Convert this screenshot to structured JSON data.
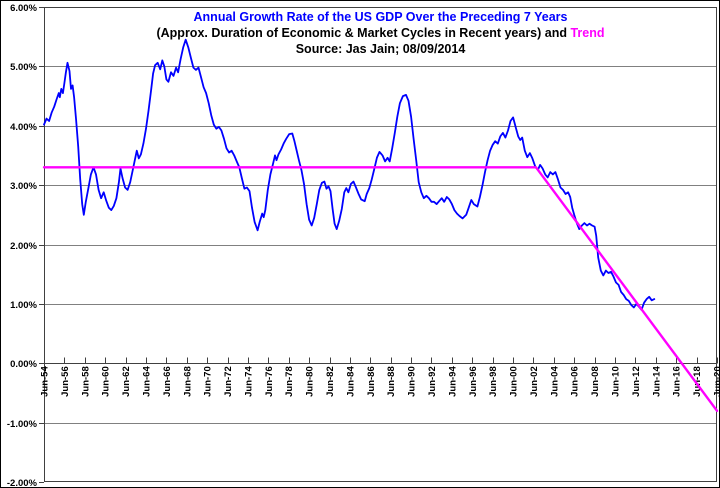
{
  "window": {
    "background": "#FFFFFF",
    "border_color": "#000000"
  },
  "chart_data": {
    "type": "line",
    "title": "Annual Growth Rate of the US GDP Over the Preceding 7 Years",
    "subtitle_prefix": "(Approx. Duration of Economic & Market Cycles in Recent years) and ",
    "subtitle_highlight": "Trend",
    "source_line": "Source: Jas Jain; 08/09/2014",
    "colors": {
      "title": "#0000FF",
      "subtitle": "#000000",
      "gdp_line": "#0000FF",
      "trend_line": "#FF00FF",
      "grid": "#808080",
      "axis": "#404040",
      "labels": "#000000"
    },
    "grid": true,
    "legend": "none",
    "ylim": [
      -2,
      6
    ],
    "ytick_step": 1,
    "ytick_labels": [
      "6.00%",
      "5.00%",
      "4.00%",
      "3.00%",
      "2.00%",
      "1.00%",
      "0.00%",
      "-1.00%",
      "-2.00%"
    ],
    "x_start_year": 1954.45,
    "x_end_year": 2020.45,
    "xtick_step_years": 2,
    "xtick_labels": [
      "Jun-54",
      "Jun-56",
      "Jun-58",
      "Jun-60",
      "Jun-62",
      "Jun-64",
      "Jun-66",
      "Jun-68",
      "Jun-70",
      "Jun-72",
      "Jun-74",
      "Jun-76",
      "Jun-78",
      "Jun-80",
      "Jun-82",
      "Jun-84",
      "Jun-86",
      "Jun-88",
      "Jun-90",
      "Jun-92",
      "Jun-94",
      "Jun-96",
      "Jun-98",
      "Jun-00",
      "Jun-02",
      "Jun-04",
      "Jun-06",
      "Jun-08",
      "Jun-10",
      "Jun-12",
      "Jun-14",
      "Jun-16",
      "Jun-18",
      "Jun-20"
    ],
    "series": [
      {
        "name": "Annual growth rate of US GDP over preceding 7 years",
        "color": "#0000FF",
        "points": [
          [
            1954.45,
            4.02
          ],
          [
            1954.7,
            4.12
          ],
          [
            1954.95,
            4.08
          ],
          [
            1955.2,
            4.22
          ],
          [
            1955.45,
            4.32
          ],
          [
            1955.7,
            4.45
          ],
          [
            1955.9,
            4.55
          ],
          [
            1956.0,
            4.48
          ],
          [
            1956.15,
            4.62
          ],
          [
            1956.3,
            4.55
          ],
          [
            1956.45,
            4.72
          ],
          [
            1956.6,
            4.9
          ],
          [
            1956.75,
            5.06
          ],
          [
            1956.95,
            4.92
          ],
          [
            1957.1,
            4.62
          ],
          [
            1957.25,
            4.68
          ],
          [
            1957.4,
            4.48
          ],
          [
            1957.6,
            4.1
          ],
          [
            1957.8,
            3.65
          ],
          [
            1958.0,
            3.1
          ],
          [
            1958.2,
            2.68
          ],
          [
            1958.35,
            2.5
          ],
          [
            1958.55,
            2.72
          ],
          [
            1958.8,
            2.95
          ],
          [
            1959.05,
            3.18
          ],
          [
            1959.3,
            3.3
          ],
          [
            1959.55,
            3.18
          ],
          [
            1959.8,
            2.92
          ],
          [
            1960.05,
            2.78
          ],
          [
            1960.3,
            2.88
          ],
          [
            1960.55,
            2.74
          ],
          [
            1960.8,
            2.62
          ],
          [
            1961.05,
            2.58
          ],
          [
            1961.3,
            2.65
          ],
          [
            1961.55,
            2.78
          ],
          [
            1961.8,
            3.05
          ],
          [
            1961.95,
            3.28
          ],
          [
            1962.15,
            3.12
          ],
          [
            1962.4,
            2.96
          ],
          [
            1962.65,
            2.92
          ],
          [
            1962.9,
            3.05
          ],
          [
            1963.15,
            3.25
          ],
          [
            1963.35,
            3.42
          ],
          [
            1963.55,
            3.58
          ],
          [
            1963.75,
            3.45
          ],
          [
            1963.95,
            3.52
          ],
          [
            1964.2,
            3.7
          ],
          [
            1964.45,
            3.95
          ],
          [
            1964.7,
            4.25
          ],
          [
            1964.95,
            4.6
          ],
          [
            1965.15,
            4.88
          ],
          [
            1965.35,
            5.02
          ],
          [
            1965.6,
            5.06
          ],
          [
            1965.85,
            4.95
          ],
          [
            1966.05,
            5.1
          ],
          [
            1966.25,
            5.0
          ],
          [
            1966.45,
            4.78
          ],
          [
            1966.65,
            4.74
          ],
          [
            1966.9,
            4.9
          ],
          [
            1967.15,
            4.84
          ],
          [
            1967.4,
            4.98
          ],
          [
            1967.6,
            4.9
          ],
          [
            1967.85,
            5.12
          ],
          [
            1968.1,
            5.32
          ],
          [
            1968.35,
            5.45
          ],
          [
            1968.6,
            5.32
          ],
          [
            1968.85,
            5.15
          ],
          [
            1969.1,
            4.98
          ],
          [
            1969.35,
            4.94
          ],
          [
            1969.6,
            4.98
          ],
          [
            1969.85,
            4.82
          ],
          [
            1970.1,
            4.65
          ],
          [
            1970.35,
            4.55
          ],
          [
            1970.6,
            4.38
          ],
          [
            1970.85,
            4.18
          ],
          [
            1971.1,
            4.02
          ],
          [
            1971.35,
            3.95
          ],
          [
            1971.6,
            3.98
          ],
          [
            1971.85,
            3.92
          ],
          [
            1972.1,
            3.78
          ],
          [
            1972.35,
            3.62
          ],
          [
            1972.6,
            3.55
          ],
          [
            1972.85,
            3.58
          ],
          [
            1973.1,
            3.5
          ],
          [
            1973.35,
            3.4
          ],
          [
            1973.6,
            3.3
          ],
          [
            1973.85,
            3.12
          ],
          [
            1974.1,
            2.94
          ],
          [
            1974.35,
            2.96
          ],
          [
            1974.6,
            2.9
          ],
          [
            1974.85,
            2.62
          ],
          [
            1975.1,
            2.38
          ],
          [
            1975.4,
            2.24
          ],
          [
            1975.6,
            2.38
          ],
          [
            1975.85,
            2.52
          ],
          [
            1976.0,
            2.46
          ],
          [
            1976.15,
            2.58
          ],
          [
            1976.4,
            2.92
          ],
          [
            1976.65,
            3.18
          ],
          [
            1976.9,
            3.35
          ],
          [
            1977.1,
            3.5
          ],
          [
            1977.25,
            3.42
          ],
          [
            1977.45,
            3.52
          ],
          [
            1977.7,
            3.6
          ],
          [
            1977.95,
            3.7
          ],
          [
            1978.2,
            3.78
          ],
          [
            1978.5,
            3.86
          ],
          [
            1978.8,
            3.87
          ],
          [
            1979.0,
            3.75
          ],
          [
            1979.2,
            3.6
          ],
          [
            1979.45,
            3.42
          ],
          [
            1979.7,
            3.25
          ],
          [
            1979.95,
            3.02
          ],
          [
            1980.2,
            2.68
          ],
          [
            1980.45,
            2.42
          ],
          [
            1980.7,
            2.32
          ],
          [
            1980.95,
            2.45
          ],
          [
            1981.2,
            2.68
          ],
          [
            1981.45,
            2.92
          ],
          [
            1981.7,
            3.04
          ],
          [
            1981.95,
            3.06
          ],
          [
            1982.15,
            2.94
          ],
          [
            1982.35,
            2.98
          ],
          [
            1982.55,
            2.9
          ],
          [
            1982.75,
            2.6
          ],
          [
            1982.95,
            2.35
          ],
          [
            1983.15,
            2.26
          ],
          [
            1983.4,
            2.4
          ],
          [
            1983.65,
            2.6
          ],
          [
            1983.9,
            2.88
          ],
          [
            1984.1,
            2.95
          ],
          [
            1984.3,
            2.88
          ],
          [
            1984.55,
            3.02
          ],
          [
            1984.8,
            3.06
          ],
          [
            1985.05,
            2.96
          ],
          [
            1985.3,
            2.85
          ],
          [
            1985.55,
            2.76
          ],
          [
            1985.9,
            2.73
          ],
          [
            1986.1,
            2.85
          ],
          [
            1986.35,
            2.95
          ],
          [
            1986.6,
            3.1
          ],
          [
            1986.85,
            3.28
          ],
          [
            1987.1,
            3.46
          ],
          [
            1987.35,
            3.56
          ],
          [
            1987.65,
            3.5
          ],
          [
            1987.9,
            3.4
          ],
          [
            1988.15,
            3.46
          ],
          [
            1988.35,
            3.4
          ],
          [
            1988.6,
            3.62
          ],
          [
            1988.85,
            3.88
          ],
          [
            1989.1,
            4.15
          ],
          [
            1989.35,
            4.38
          ],
          [
            1989.65,
            4.5
          ],
          [
            1989.95,
            4.52
          ],
          [
            1990.2,
            4.42
          ],
          [
            1990.45,
            4.15
          ],
          [
            1990.7,
            3.78
          ],
          [
            1990.95,
            3.42
          ],
          [
            1991.2,
            3.05
          ],
          [
            1991.45,
            2.88
          ],
          [
            1991.7,
            2.78
          ],
          [
            1991.95,
            2.82
          ],
          [
            1992.2,
            2.78
          ],
          [
            1992.45,
            2.72
          ],
          [
            1992.7,
            2.72
          ],
          [
            1992.95,
            2.68
          ],
          [
            1993.2,
            2.73
          ],
          [
            1993.45,
            2.78
          ],
          [
            1993.7,
            2.72
          ],
          [
            1993.95,
            2.8
          ],
          [
            1994.2,
            2.76
          ],
          [
            1994.45,
            2.68
          ],
          [
            1994.7,
            2.58
          ],
          [
            1994.95,
            2.52
          ],
          [
            1995.2,
            2.48
          ],
          [
            1995.5,
            2.44
          ],
          [
            1995.85,
            2.5
          ],
          [
            1996.1,
            2.62
          ],
          [
            1996.35,
            2.75
          ],
          [
            1996.6,
            2.68
          ],
          [
            1996.95,
            2.64
          ],
          [
            1997.2,
            2.8
          ],
          [
            1997.45,
            3.0
          ],
          [
            1997.7,
            3.22
          ],
          [
            1997.95,
            3.42
          ],
          [
            1998.2,
            3.58
          ],
          [
            1998.45,
            3.68
          ],
          [
            1998.7,
            3.74
          ],
          [
            1998.95,
            3.7
          ],
          [
            1999.2,
            3.82
          ],
          [
            1999.45,
            3.88
          ],
          [
            1999.7,
            3.8
          ],
          [
            1999.95,
            3.92
          ],
          [
            2000.2,
            4.08
          ],
          [
            2000.45,
            4.14
          ],
          [
            2000.7,
            3.98
          ],
          [
            2000.95,
            3.82
          ],
          [
            2001.15,
            3.76
          ],
          [
            2001.35,
            3.8
          ],
          [
            2001.6,
            3.58
          ],
          [
            2001.85,
            3.47
          ],
          [
            2002.1,
            3.54
          ],
          [
            2002.35,
            3.45
          ],
          [
            2002.65,
            3.3
          ],
          [
            2002.9,
            3.26
          ],
          [
            2003.1,
            3.34
          ],
          [
            2003.35,
            3.28
          ],
          [
            2003.6,
            3.18
          ],
          [
            2003.85,
            3.13
          ],
          [
            2004.1,
            3.22
          ],
          [
            2004.35,
            3.18
          ],
          [
            2004.6,
            3.22
          ],
          [
            2004.85,
            3.1
          ],
          [
            2005.1,
            2.96
          ],
          [
            2005.35,
            2.92
          ],
          [
            2005.6,
            2.85
          ],
          [
            2005.85,
            2.88
          ],
          [
            2006.05,
            2.8
          ],
          [
            2006.25,
            2.62
          ],
          [
            2006.45,
            2.5
          ],
          [
            2006.7,
            2.36
          ],
          [
            2006.95,
            2.26
          ],
          [
            2007.2,
            2.32
          ],
          [
            2007.45,
            2.36
          ],
          [
            2007.7,
            2.32
          ],
          [
            2007.95,
            2.35
          ],
          [
            2008.2,
            2.32
          ],
          [
            2008.45,
            2.3
          ],
          [
            2008.6,
            2.15
          ],
          [
            2008.8,
            1.78
          ],
          [
            2009.05,
            1.56
          ],
          [
            2009.3,
            1.48
          ],
          [
            2009.55,
            1.56
          ],
          [
            2009.8,
            1.52
          ],
          [
            2010.05,
            1.54
          ],
          [
            2010.3,
            1.46
          ],
          [
            2010.55,
            1.36
          ],
          [
            2010.8,
            1.32
          ],
          [
            2011.05,
            1.2
          ],
          [
            2011.3,
            1.15
          ],
          [
            2011.55,
            1.08
          ],
          [
            2011.8,
            1.05
          ],
          [
            2012.05,
            0.98
          ],
          [
            2012.3,
            0.94
          ],
          [
            2012.55,
            1.0
          ],
          [
            2012.8,
            0.95
          ],
          [
            2013.05,
            0.9
          ],
          [
            2013.3,
            1.02
          ],
          [
            2013.55,
            1.08
          ],
          [
            2013.8,
            1.12
          ],
          [
            2014.05,
            1.06
          ],
          [
            2014.3,
            1.08
          ]
        ]
      },
      {
        "name": "Trend",
        "color": "#FF00FF",
        "points": [
          [
            1954.45,
            3.3
          ],
          [
            2002.7,
            3.3
          ],
          [
            2020.45,
            -0.8
          ]
        ]
      }
    ]
  }
}
